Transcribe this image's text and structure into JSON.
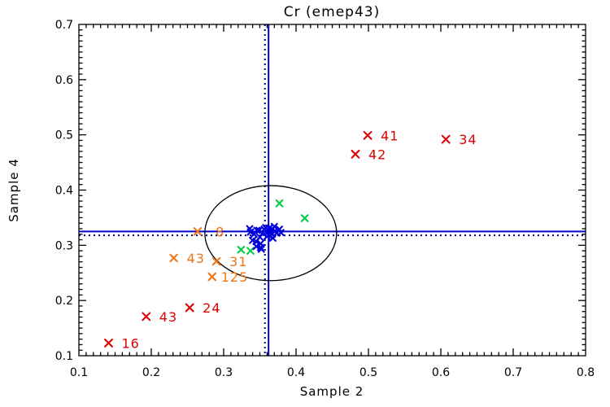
{
  "chart_data": {
    "type": "scatter",
    "title": "Cr (emep43)",
    "xlabel": "Sample 2",
    "ylabel": "Sample 4",
    "xlim": [
      0.1,
      0.8
    ],
    "ylim": [
      0.1,
      0.7
    ],
    "xticks": [
      0.1,
      0.2,
      0.3,
      0.4,
      0.5,
      0.6,
      0.7,
      0.8
    ],
    "xtick_labels": [
      "0.1",
      "0.2",
      "0.3",
      "0.4",
      "0.5",
      "0.6",
      "0.7",
      "0.8"
    ],
    "yticks": [
      0.1,
      0.2,
      0.3,
      0.4,
      0.5,
      0.6,
      0.7
    ],
    "ytick_labels": [
      "0.1",
      "0.2",
      "0.3",
      "0.4",
      "0.5",
      "0.6",
      "0.7"
    ],
    "minor_tick_step": 0.01,
    "grid": false,
    "legend": false,
    "background": "#ffffff",
    "axis_color": "#000000",
    "series": [
      {
        "name": "far-outliers-red",
        "color": "#dd0000",
        "marker": "x",
        "size": 4.4,
        "points": [
          {
            "x": 0.499,
            "y": 0.499,
            "label": "41"
          },
          {
            "x": 0.482,
            "y": 0.465,
            "label": "42"
          },
          {
            "x": 0.607,
            "y": 0.492,
            "label": "34"
          },
          {
            "x": 0.193,
            "y": 0.171,
            "label": "43"
          },
          {
            "x": 0.253,
            "y": 0.187,
            "label": "24"
          },
          {
            "x": 0.141,
            "y": 0.123,
            "label": "16"
          }
        ]
      },
      {
        "name": "moderate-outliers-orange",
        "color": "#ee7618",
        "marker": "x",
        "size": 4.2,
        "points": [
          {
            "x": 0.264,
            "y": 0.325,
            "label": "8",
            "dx": 22
          },
          {
            "x": 0.231,
            "y": 0.277,
            "label": "43"
          },
          {
            "x": 0.29,
            "y": 0.271,
            "label": "31"
          },
          {
            "x": 0.284,
            "y": 0.243,
            "label": "125",
            "dx": 11
          }
        ]
      },
      {
        "name": "near-cluster-green",
        "color": "#00cc44",
        "marker": "x",
        "size": 3.8,
        "points": [
          {
            "x": 0.377,
            "y": 0.376
          },
          {
            "x": 0.412,
            "y": 0.349
          },
          {
            "x": 0.324,
            "y": 0.292
          },
          {
            "x": 0.337,
            "y": 0.29
          }
        ]
      },
      {
        "name": "main-cluster-blue",
        "color": "#0000dd",
        "marker": "x",
        "size": 3.4,
        "points": [
          {
            "x": 0.336,
            "y": 0.33
          },
          {
            "x": 0.337,
            "y": 0.324
          },
          {
            "x": 0.34,
            "y": 0.309
          },
          {
            "x": 0.342,
            "y": 0.32
          },
          {
            "x": 0.345,
            "y": 0.307
          },
          {
            "x": 0.345,
            "y": 0.298
          },
          {
            "x": 0.346,
            "y": 0.327
          },
          {
            "x": 0.349,
            "y": 0.327
          },
          {
            "x": 0.35,
            "y": 0.315
          },
          {
            "x": 0.351,
            "y": 0.303
          },
          {
            "x": 0.352,
            "y": 0.293
          },
          {
            "x": 0.354,
            "y": 0.322
          },
          {
            "x": 0.356,
            "y": 0.329
          },
          {
            "x": 0.358,
            "y": 0.332
          },
          {
            "x": 0.359,
            "y": 0.323
          },
          {
            "x": 0.36,
            "y": 0.316
          },
          {
            "x": 0.362,
            "y": 0.326
          },
          {
            "x": 0.362,
            "y": 0.319
          },
          {
            "x": 0.363,
            "y": 0.331
          },
          {
            "x": 0.365,
            "y": 0.323
          },
          {
            "x": 0.367,
            "y": 0.329
          },
          {
            "x": 0.367,
            "y": 0.32
          },
          {
            "x": 0.368,
            "y": 0.313
          },
          {
            "x": 0.37,
            "y": 0.334
          },
          {
            "x": 0.371,
            "y": 0.326
          },
          {
            "x": 0.373,
            "y": 0.322
          },
          {
            "x": 0.377,
            "y": 0.329
          },
          {
            "x": 0.379,
            "y": 0.323
          },
          {
            "x": 0.351,
            "y": 0.296
          }
        ]
      }
    ],
    "crosshair": {
      "solid": {
        "x": 0.362,
        "y": 0.325,
        "color": "#0000cd"
      },
      "dotted": {
        "x": 0.357,
        "y": 0.318,
        "color": "#00008b"
      }
    },
    "ellipse": {
      "cx": 0.365,
      "cy": 0.322,
      "rx": 0.091,
      "ry": 0.086,
      "color": "#000000"
    }
  }
}
